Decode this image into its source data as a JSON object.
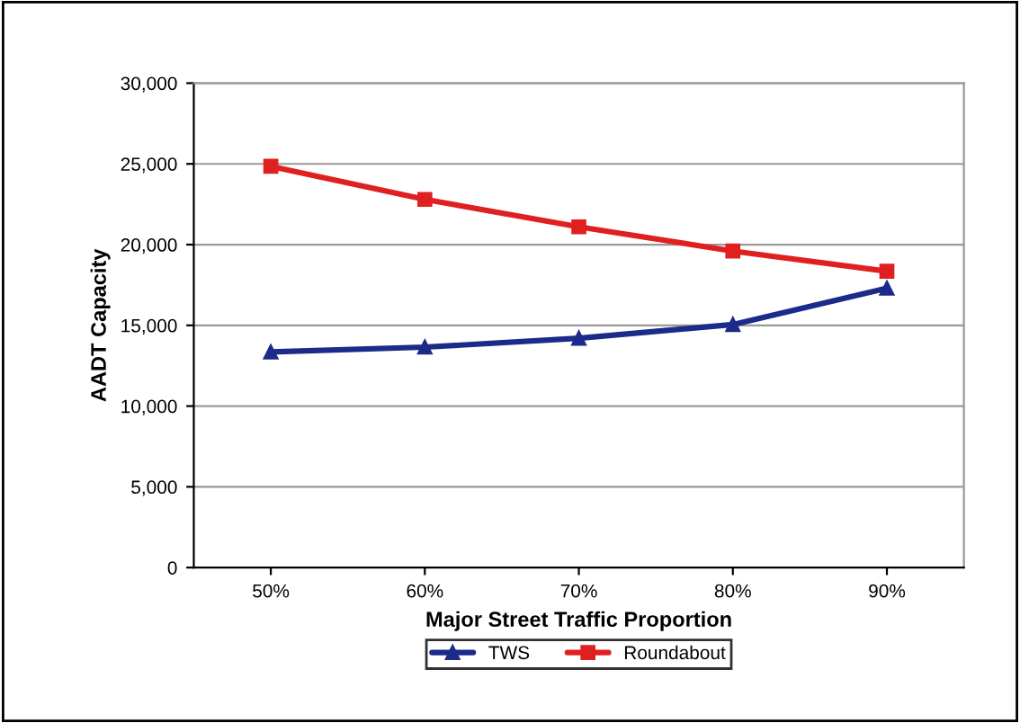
{
  "chart_data": {
    "type": "line",
    "xlabel": "Major Street Traffic Proportion",
    "ylabel": "AADT Capacity",
    "categories": [
      "50%",
      "60%",
      "70%",
      "80%",
      "90%"
    ],
    "series": [
      {
        "name": "TWS",
        "color": "#1c2a8a",
        "marker": "triangle",
        "values": [
          13350,
          13650,
          14200,
          15050,
          17300
        ]
      },
      {
        "name": "Roundabout",
        "color": "#e02020",
        "marker": "square",
        "values": [
          24850,
          22800,
          21100,
          19600,
          18350
        ]
      }
    ],
    "ylim": [
      0,
      30000
    ],
    "yticks": [
      {
        "value": 0,
        "label": "0"
      },
      {
        "value": 5000,
        "label": "5,000"
      },
      {
        "value": 10000,
        "label": "10,000"
      },
      {
        "value": 15000,
        "label": "15,000"
      },
      {
        "value": 20000,
        "label": "20,000"
      },
      {
        "value": 25000,
        "label": "25,000"
      },
      {
        "value": 30000,
        "label": "30,000"
      }
    ],
    "grid": "y",
    "legend": "bottom"
  }
}
